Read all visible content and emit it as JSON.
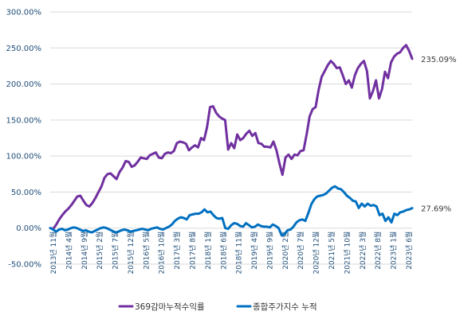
{
  "chart_data": {
    "type": "line",
    "title": "",
    "xlabel": "",
    "ylabel": "",
    "ylim": [
      -50,
      300
    ],
    "y_ticks": [
      -50,
      0,
      50,
      100,
      150,
      200,
      250,
      300
    ],
    "y_tick_labels": [
      "-50.00%",
      "0.00%",
      "50.00%",
      "100.00%",
      "150.00%",
      "200.00%",
      "250.00%",
      "300.00%"
    ],
    "grid": "horizontal",
    "legend": "bottom",
    "x_tick_labels": [
      "2013년 11월",
      "2014년 4월",
      "2014년 9월",
      "2015년 2월",
      "2015년 7월",
      "2015년 12월",
      "2016년 5월",
      "2016년 10월",
      "2017년 3월",
      "2017년 8월",
      "2018년 1월",
      "2018년 6월",
      "2018년 11월",
      "2019년 4월",
      "2019년 9월",
      "2020년 2월",
      "2020년 7월",
      "2020년 12월",
      "2021년 5월",
      "2021년 10월",
      "2022년 3월",
      "2022년 8월",
      "2023년 1월",
      "2023년 6월"
    ],
    "series": [
      {
        "name": "369감마누적수익률",
        "color": "#7030a0",
        "end_label": "235.09%",
        "values": [
          0,
          -1,
          5,
          12,
          18,
          23,
          27,
          32,
          38,
          44,
          45,
          38,
          32,
          30,
          35,
          42,
          50,
          58,
          70,
          75,
          76,
          72,
          68,
          78,
          84,
          93,
          92,
          85,
          87,
          92,
          98,
          97,
          96,
          101,
          103,
          105,
          98,
          97,
          103,
          105,
          104,
          107,
          118,
          120,
          119,
          117,
          108,
          112,
          115,
          112,
          125,
          122,
          140,
          168,
          169,
          160,
          155,
          152,
          150,
          109,
          118,
          111,
          130,
          122,
          125,
          131,
          135,
          128,
          132,
          118,
          117,
          113,
          113,
          112,
          120,
          108,
          90,
          74,
          98,
          102,
          96,
          102,
          101,
          107,
          108,
          130,
          155,
          165,
          168,
          192,
          210,
          218,
          226,
          232,
          228,
          222,
          223,
          212,
          200,
          205,
          195,
          212,
          222,
          228,
          232,
          218,
          180,
          190,
          205,
          180,
          193,
          217,
          208,
          230,
          238,
          242,
          244,
          250,
          254,
          246,
          235.09
        ]
      },
      {
        "name": "종합주가지수 누적",
        "color": "#0070c0",
        "end_label": "27.69%",
        "values": [
          0,
          -2,
          -5,
          -2,
          -1,
          -3,
          -2,
          0,
          1,
          0,
          -2,
          -4,
          -3,
          -5,
          -6,
          -4,
          -2,
          0,
          1,
          0,
          -2,
          -4,
          -6,
          -5,
          -3,
          -2,
          -3,
          -5,
          -4,
          -3,
          -2,
          -1,
          -2,
          -3,
          -1,
          0,
          1,
          -1,
          -2,
          0,
          2,
          5,
          10,
          13,
          15,
          14,
          12,
          18,
          19,
          20,
          20,
          22,
          26,
          22,
          23,
          18,
          14,
          13,
          14,
          0,
          -1,
          4,
          7,
          6,
          3,
          2,
          7,
          4,
          1,
          2,
          5,
          3,
          2,
          2,
          1,
          5,
          3,
          0,
          -10,
          -8,
          -3,
          -2,
          2,
          8,
          11,
          12,
          10,
          21,
          33,
          40,
          44,
          45,
          46,
          48,
          52,
          56,
          58,
          55,
          54,
          50,
          45,
          42,
          38,
          37,
          28,
          34,
          30,
          34,
          31,
          32,
          30,
          18,
          20,
          10,
          15,
          8,
          20,
          18,
          22,
          23,
          25,
          26,
          27.69
        ]
      }
    ]
  }
}
